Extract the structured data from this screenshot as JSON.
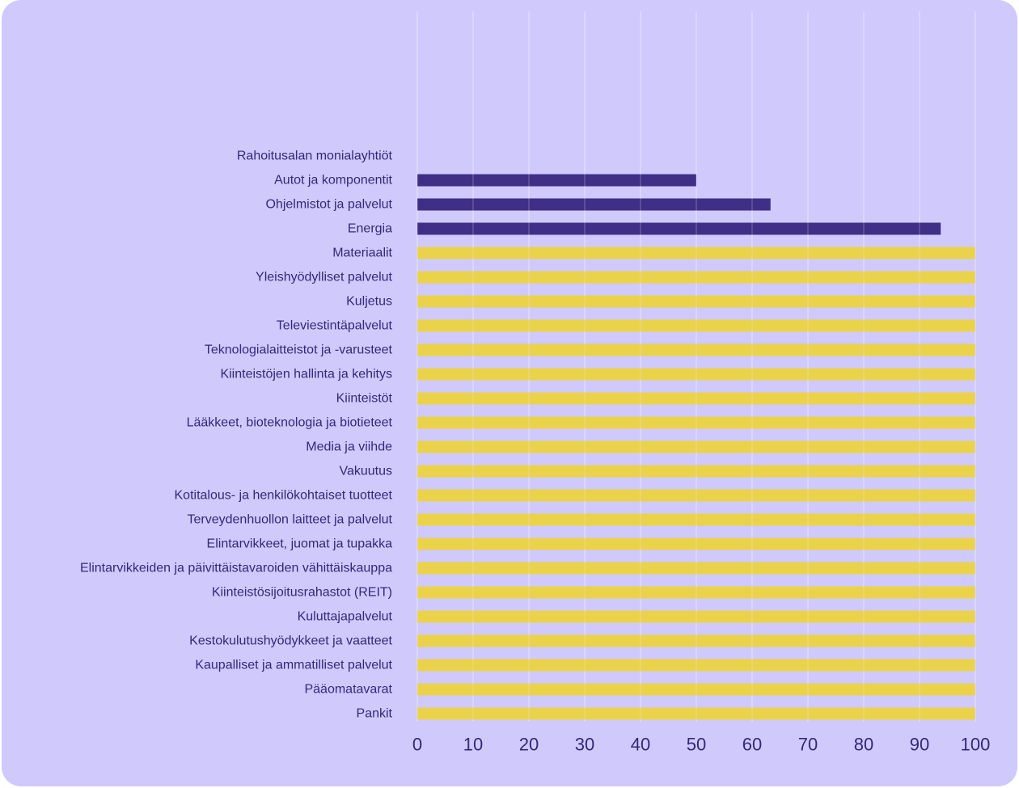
{
  "colors": {
    "background": "#d0c9fc",
    "gridline": "#e8e4ff",
    "text": "#34287a",
    "dark_bar": "#3f2f86",
    "yellow_bar": "#ead34b"
  },
  "chart_data": {
    "type": "bar",
    "orientation": "horizontal",
    "title": "",
    "xlabel": "",
    "ylabel": "",
    "xlim": [
      0,
      100
    ],
    "grid": true,
    "legend": "none",
    "x_ticks": [
      0,
      10,
      20,
      30,
      40,
      50,
      60,
      70,
      80,
      90,
      100
    ],
    "categories": [
      "Rahoitusalan monialayhtiöt",
      "Autot ja komponentit",
      "Ohjelmistot ja palvelut",
      "Energia",
      "Materiaalit",
      "Yleishyödylliset palvelut",
      "Kuljetus",
      "Televiestintäpalvelut",
      "Teknologialaitteistot ja -varusteet",
      "Kiinteistöjen hallinta ja kehitys",
      "Kiinteistöt",
      "Lääkkeet, bioteknologia ja biotieteet",
      "Media ja viihde",
      "Vakuutus",
      "Kotitalous- ja henkilökohtaiset tuotteet",
      "Terveydenhuollon laitteet ja palvelut",
      "Elintarvikkeet, juomat ja tupakka",
      "Elintarvikkeiden ja päivittäistavaroiden vähittäiskauppa",
      "Kiinteistösijoitusrahastot (REIT)",
      "Kuluttajapalvelut",
      "Kestokulutushyödykkeet ja vaatteet",
      "Kaupalliset ja ammatilliset palvelut",
      "Pääomatavarat",
      "Pankit"
    ],
    "values": [
      0,
      50,
      63.3,
      93.8,
      100,
      100,
      100,
      100,
      100,
      100,
      100,
      100,
      100,
      100,
      100,
      100,
      100,
      100,
      100,
      100,
      100,
      100,
      100,
      100
    ],
    "bar_colors": [
      "dark",
      "dark",
      "dark",
      "dark",
      "yellow",
      "yellow",
      "yellow",
      "yellow",
      "yellow",
      "yellow",
      "yellow",
      "yellow",
      "yellow",
      "yellow",
      "yellow",
      "yellow",
      "yellow",
      "yellow",
      "yellow",
      "yellow",
      "yellow",
      "yellow",
      "yellow",
      "yellow"
    ]
  }
}
